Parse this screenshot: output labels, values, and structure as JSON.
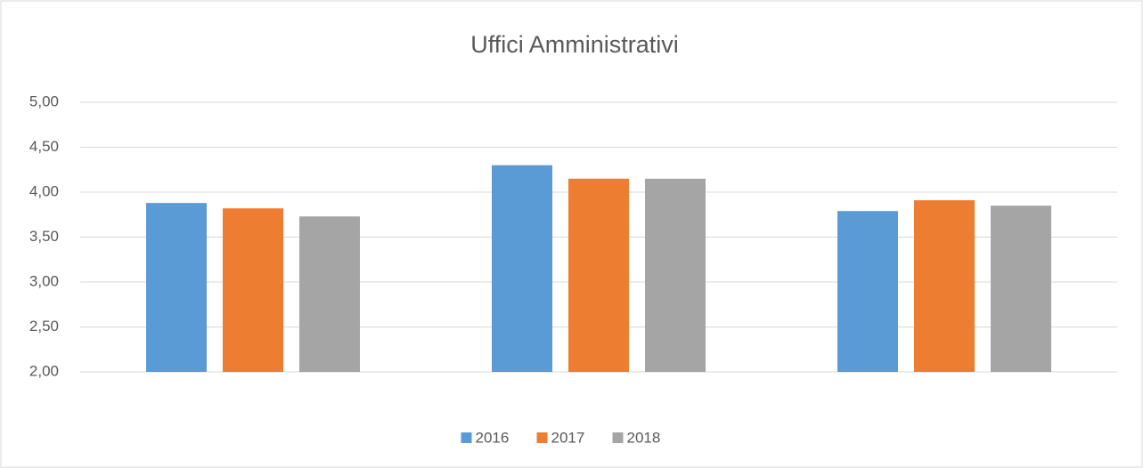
{
  "chart_data": {
    "type": "bar",
    "title": "Uffici Amministrativi",
    "categories": [
      null,
      null,
      null
    ],
    "series": [
      {
        "name": "2016",
        "color": "#5b9bd5",
        "values": [
          3.88,
          4.3,
          3.79
        ]
      },
      {
        "name": "2017",
        "color": "#ed7d31",
        "values": [
          3.82,
          4.15,
          3.91
        ]
      },
      {
        "name": "2018",
        "color": "#a5a5a5",
        "values": [
          3.73,
          4.15,
          3.85
        ]
      }
    ],
    "ylim": [
      2,
      5
    ],
    "yticks": [
      {
        "value": 2,
        "label": "2,00"
      },
      {
        "value": 2.5,
        "label": "2,50"
      },
      {
        "value": 3,
        "label": "3,00"
      },
      {
        "value": 3.5,
        "label": "3,50"
      },
      {
        "value": 4,
        "label": "4,00"
      },
      {
        "value": 4.5,
        "label": "4,50"
      },
      {
        "value": 5,
        "label": "5,00"
      }
    ],
    "grid": true,
    "legend": "bottom"
  }
}
